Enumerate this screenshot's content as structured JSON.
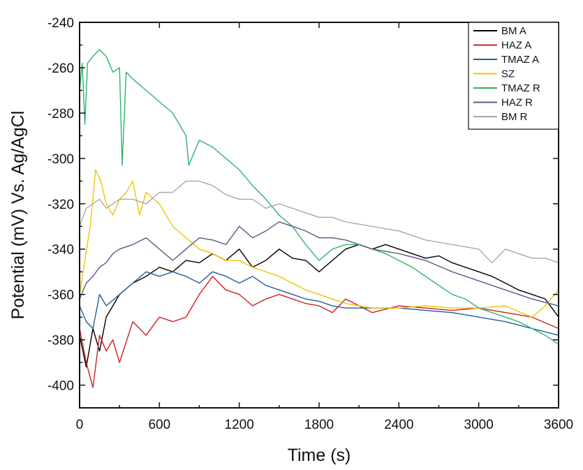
{
  "chart_data": {
    "type": "line",
    "title": "",
    "xlabel": "Time (s)",
    "ylabel": "Potential (mV) Vs. Ag/AgCl",
    "xlim": [
      0,
      3600
    ],
    "ylim": [
      -410,
      -240
    ],
    "x_ticks": [
      0,
      600,
      1200,
      1800,
      2400,
      3000,
      3600
    ],
    "x_tick_labels": [
      "0",
      "600",
      "1200",
      "1800",
      "2400",
      "3000",
      "3600"
    ],
    "y_ticks": [
      -400,
      -380,
      -360,
      -340,
      -320,
      -300,
      -280,
      -260,
      -240
    ],
    "y_tick_labels": [
      "-400",
      "-380",
      "-360",
      "-340",
      "-320",
      "-300",
      "-280",
      "-260",
      "-240"
    ],
    "grid": false,
    "legend_position": "top-right",
    "series": [
      {
        "name": "BM A",
        "color": "#000000",
        "x": [
          0,
          50,
          100,
          150,
          200,
          300,
          400,
          500,
          600,
          700,
          800,
          900,
          1000,
          1100,
          1200,
          1300,
          1400,
          1500,
          1600,
          1700,
          1800,
          1900,
          2000,
          2100,
          2200,
          2300,
          2400,
          2500,
          2600,
          2700,
          2800,
          2900,
          3000,
          3100,
          3200,
          3300,
          3400,
          3500,
          3600
        ],
        "y": [
          -378,
          -392,
          -375,
          -385,
          -370,
          -360,
          -355,
          -352,
          -348,
          -350,
          -345,
          -346,
          -342,
          -345,
          -340,
          -348,
          -345,
          -340,
          -344,
          -345,
          -350,
          -345,
          -340,
          -338,
          -340,
          -338,
          -340,
          -342,
          -344,
          -343,
          -346,
          -348,
          -350,
          -352,
          -355,
          -358,
          -360,
          -362,
          -370
        ]
      },
      {
        "name": "HAZ A",
        "color": "#cc1f1f",
        "x": [
          0,
          50,
          100,
          150,
          200,
          250,
          300,
          400,
          500,
          600,
          700,
          800,
          900,
          1000,
          1100,
          1200,
          1300,
          1400,
          1500,
          1600,
          1700,
          1800,
          1900,
          2000,
          2200,
          2400,
          2600,
          2800,
          3000,
          3200,
          3400,
          3600
        ],
        "y": [
          -375,
          -390,
          -401,
          -378,
          -385,
          -380,
          -390,
          -372,
          -378,
          -370,
          -372,
          -370,
          -360,
          -352,
          -358,
          -360,
          -365,
          -362,
          -360,
          -362,
          -364,
          -365,
          -368,
          -362,
          -368,
          -365,
          -366,
          -367,
          -366,
          -368,
          -370,
          -375
        ]
      },
      {
        "name": "TMAZ A",
        "color": "#1f5f9a",
        "x": [
          0,
          50,
          100,
          150,
          200,
          300,
          400,
          500,
          600,
          700,
          800,
          900,
          1000,
          1100,
          1200,
          1300,
          1400,
          1500,
          1600,
          1700,
          1800,
          1900,
          2000,
          2200,
          2400,
          2600,
          2800,
          3000,
          3200,
          3400,
          3600
        ],
        "y": [
          -365,
          -372,
          -375,
          -360,
          -365,
          -360,
          -355,
          -350,
          -352,
          -350,
          -352,
          -355,
          -350,
          -352,
          -355,
          -352,
          -356,
          -358,
          -360,
          -362,
          -363,
          -365,
          -366,
          -366,
          -366,
          -367,
          -368,
          -370,
          -372,
          -375,
          -378
        ]
      },
      {
        "name": "SZ",
        "color": "#f0c400",
        "x": [
          0,
          40,
          80,
          120,
          160,
          200,
          250,
          300,
          350,
          400,
          450,
          500,
          600,
          700,
          800,
          900,
          1000,
          1100,
          1200,
          1300,
          1400,
          1500,
          1600,
          1700,
          1800,
          1900,
          2000,
          2200,
          2400,
          2600,
          2800,
          3000,
          3200,
          3400,
          3500,
          3600
        ],
        "y": [
          -360,
          -345,
          -330,
          -305,
          -310,
          -320,
          -325,
          -318,
          -315,
          -310,
          -325,
          -315,
          -320,
          -330,
          -335,
          -340,
          -342,
          -345,
          -345,
          -348,
          -350,
          -352,
          -355,
          -358,
          -360,
          -362,
          -364,
          -366,
          -366,
          -365,
          -366,
          -366,
          -365,
          -370,
          -365,
          -358
        ]
      },
      {
        "name": "TMAZ R",
        "color": "#2fb36a",
        "x": [
          0,
          20,
          40,
          60,
          100,
          150,
          200,
          250,
          300,
          320,
          350,
          400,
          500,
          600,
          700,
          750,
          800,
          820,
          900,
          1000,
          1100,
          1200,
          1300,
          1400,
          1500,
          1600,
          1700,
          1800,
          1900,
          2000,
          2100,
          2200,
          2300,
          2400,
          2500,
          2600,
          2700,
          2800,
          2900,
          3000,
          3100,
          3200,
          3300,
          3400,
          3500,
          3600
        ],
        "y": [
          -270,
          -258,
          -285,
          -258,
          -255,
          -252,
          -255,
          -262,
          -260,
          -303,
          -262,
          -265,
          -270,
          -275,
          -280,
          -285,
          -290,
          -303,
          -292,
          -295,
          -300,
          -305,
          -312,
          -318,
          -325,
          -330,
          -338,
          -345,
          -340,
          -338,
          -338,
          -340,
          -342,
          -345,
          -348,
          -352,
          -356,
          -360,
          -362,
          -366,
          -368,
          -370,
          -372,
          -375,
          -378,
          -382
        ]
      },
      {
        "name": "HAZ R",
        "color": "#5a5a8a",
        "x": [
          0,
          50,
          100,
          150,
          200,
          250,
          300,
          400,
          500,
          600,
          700,
          800,
          900,
          1000,
          1100,
          1200,
          1300,
          1400,
          1500,
          1600,
          1700,
          1800,
          1900,
          2000,
          2100,
          2200,
          2400,
          2600,
          2800,
          3000,
          3200,
          3400,
          3600
        ],
        "y": [
          -362,
          -355,
          -352,
          -348,
          -346,
          -342,
          -340,
          -338,
          -335,
          -340,
          -345,
          -340,
          -335,
          -336,
          -338,
          -330,
          -335,
          -332,
          -328,
          -330,
          -332,
          -335,
          -335,
          -336,
          -338,
          -340,
          -342,
          -345,
          -350,
          -354,
          -358,
          -362,
          -365
        ]
      },
      {
        "name": "BM R",
        "color": "#a8a8a8",
        "x": [
          0,
          50,
          100,
          150,
          200,
          250,
          300,
          400,
          500,
          600,
          700,
          800,
          900,
          1000,
          1100,
          1200,
          1300,
          1400,
          1500,
          1600,
          1700,
          1800,
          1900,
          2000,
          2200,
          2400,
          2600,
          2800,
          3000,
          3100,
          3200,
          3300,
          3400,
          3500,
          3600
        ],
        "y": [
          -330,
          -322,
          -320,
          -318,
          -322,
          -320,
          -318,
          -318,
          -320,
          -315,
          -315,
          -310,
          -310,
          -312,
          -316,
          -318,
          -318,
          -322,
          -320,
          -322,
          -324,
          -326,
          -326,
          -328,
          -330,
          -332,
          -336,
          -338,
          -340,
          -346,
          -340,
          -342,
          -344,
          -344,
          -346
        ]
      }
    ]
  }
}
